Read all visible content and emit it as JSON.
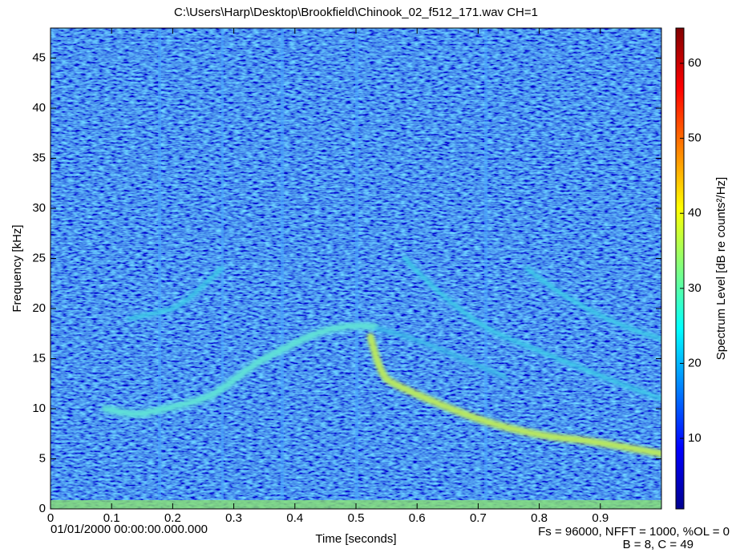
{
  "chart_data": {
    "type": "spectrogram",
    "title": "C:\\Users\\Harp\\Desktop\\Brookfield\\Chinook_02_f512_171.wav CH=1",
    "x_label": "Time [seconds]",
    "y_label": "Frequency [kHz]",
    "colorbar_label": "Spectrum Level [dB re counts²/Hz]",
    "annotations": [
      "01/01/2000 00:00:00.000.000",
      "Fs = 96000, NFFT = 1000, %OL = 0",
      "B = 8, C = 49"
    ],
    "xlim": [
      0,
      1
    ],
    "xticks": [
      0,
      0.1,
      0.2,
      0.3,
      0.4,
      0.5,
      0.6,
      0.7,
      0.8,
      0.9
    ],
    "ylim": [
      0,
      48
    ],
    "yticks": [
      0,
      5,
      10,
      15,
      20,
      25,
      30,
      35,
      40,
      45
    ],
    "colormap": "jet",
    "clim": [
      0.6,
      64.7
    ],
    "cticks": [
      10,
      20,
      30,
      40,
      50,
      60
    ]
  }
}
